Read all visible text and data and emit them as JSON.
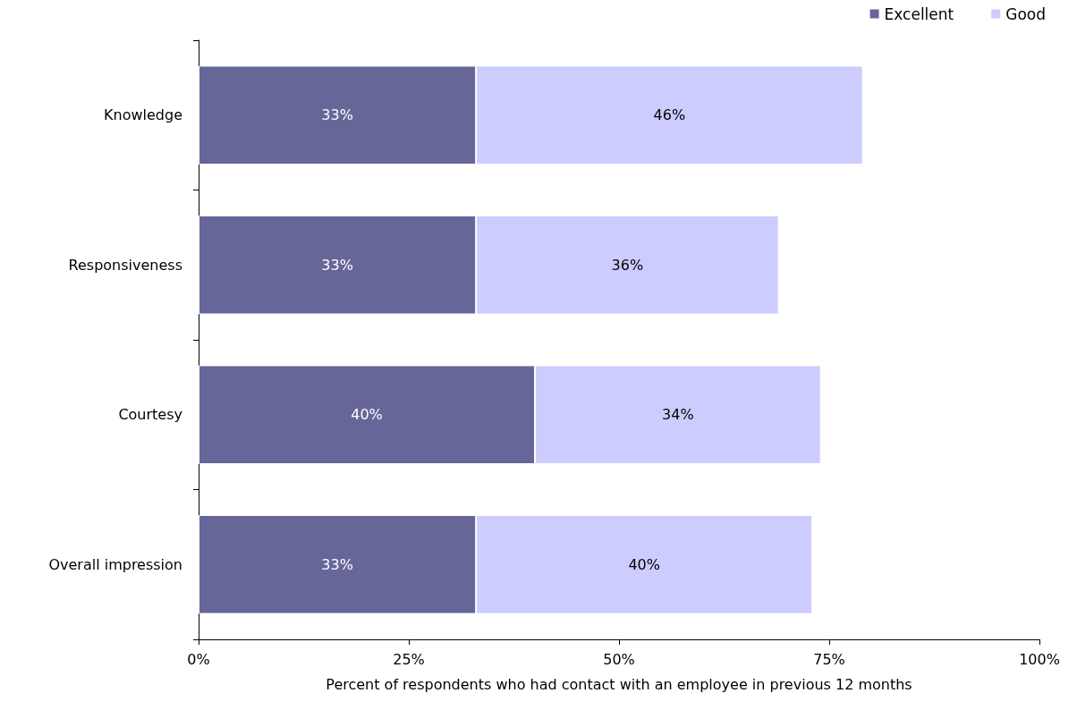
{
  "chart_data": {
    "type": "bar",
    "orientation": "horizontal",
    "stacked": true,
    "xlabel": "Percent of respondents who had contact with an employee in previous 12 months",
    "categories": [
      "Knowledge",
      "Responsiveness",
      "Courtesy",
      "Overall impression"
    ],
    "series": [
      {
        "name": "Excellent",
        "color": "#666699",
        "values": [
          33,
          33,
          40,
          33
        ],
        "value_labels": [
          "33%",
          "33%",
          "40%",
          "33%"
        ]
      },
      {
        "name": "Good",
        "color": "#ccccff",
        "values": [
          46,
          36,
          34,
          40
        ],
        "value_labels": [
          "46%",
          "36%",
          "34%",
          "40%"
        ]
      }
    ],
    "xlim": [
      0,
      100
    ],
    "xticks": [
      {
        "value": 0,
        "label": "0%"
      },
      {
        "value": 25,
        "label": "25%"
      },
      {
        "value": 50,
        "label": "50%"
      },
      {
        "value": 75,
        "label": "75%"
      },
      {
        "value": 100,
        "label": "100%"
      }
    ],
    "grid": false,
    "legend": "top right"
  }
}
